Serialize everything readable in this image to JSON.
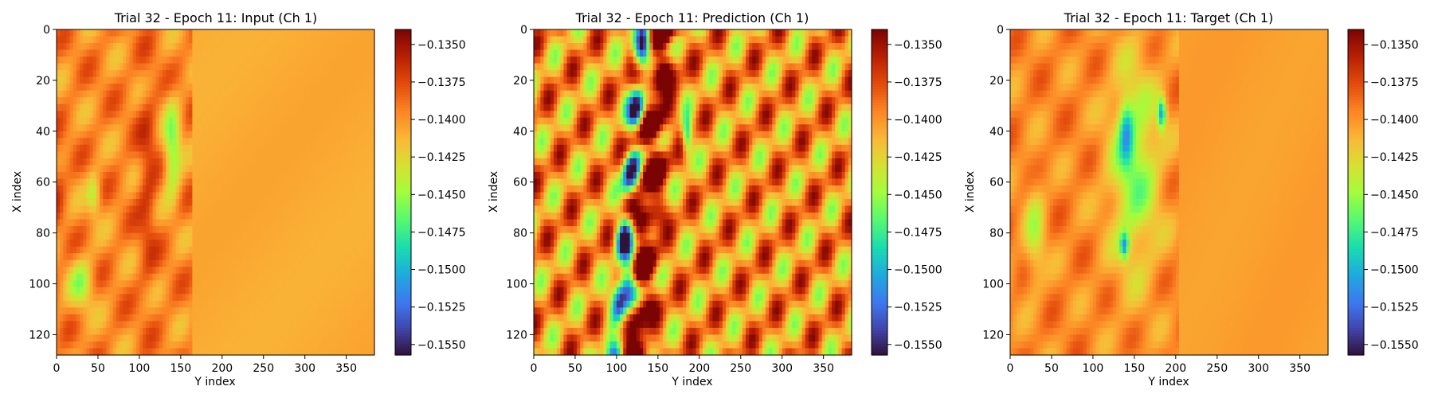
{
  "chart_data": [
    {
      "type": "heatmap",
      "title": "Trial 32 - Epoch 11: Input (Ch 1)",
      "xlabel": "Y index",
      "ylabel": "X index",
      "x_range": [
        0,
        384
      ],
      "y_range": [
        0,
        128
      ],
      "xticks": [
        "0",
        "50",
        "100",
        "150",
        "200",
        "250",
        "300",
        "350"
      ],
      "xtick_values": [
        0,
        50,
        100,
        150,
        200,
        250,
        300,
        350
      ],
      "yticks": [
        "0",
        "20",
        "40",
        "60",
        "80",
        "100",
        "120"
      ],
      "ytick_values": [
        0,
        20,
        40,
        60,
        80,
        100,
        120
      ],
      "colormap": "turbo",
      "colorbar": {
        "vmin": -0.1557,
        "vmax": -0.134,
        "ticks": [
          "−0.1350",
          "−0.1375",
          "−0.1400",
          "−0.1425",
          "−0.1450",
          "−0.1475",
          "−0.1500",
          "−0.1525",
          "−0.1550"
        ],
        "tick_values": [
          -0.135,
          -0.1375,
          -0.14,
          -0.1425,
          -0.145,
          -0.1475,
          -0.15,
          -0.1525,
          -0.155
        ]
      }
    },
    {
      "type": "heatmap",
      "title": "Trial 32 - Epoch 11: Prediction (Ch 1)",
      "xlabel": "Y index",
      "ylabel": "X index",
      "x_range": [
        0,
        384
      ],
      "y_range": [
        0,
        128
      ],
      "xticks": [
        "0",
        "50",
        "100",
        "150",
        "200",
        "250",
        "300",
        "350"
      ],
      "xtick_values": [
        0,
        50,
        100,
        150,
        200,
        250,
        300,
        350
      ],
      "yticks": [
        "0",
        "20",
        "40",
        "60",
        "80",
        "100",
        "120"
      ],
      "ytick_values": [
        0,
        20,
        40,
        60,
        80,
        100,
        120
      ],
      "colormap": "turbo",
      "colorbar": {
        "vmin": -0.1557,
        "vmax": -0.134,
        "ticks": [
          "−0.1350",
          "−0.1375",
          "−0.1400",
          "−0.1425",
          "−0.1450",
          "−0.1475",
          "−0.1500",
          "−0.1525",
          "−0.1550"
        ],
        "tick_values": [
          -0.135,
          -0.1375,
          -0.14,
          -0.1425,
          -0.145,
          -0.1475,
          -0.15,
          -0.1525,
          -0.155
        ]
      }
    },
    {
      "type": "heatmap",
      "title": "Trial 32 - Epoch 11: Target (Ch 1)",
      "xlabel": "Y index",
      "ylabel": "X index",
      "x_range": [
        0,
        384
      ],
      "y_range": [
        0,
        128
      ],
      "xticks": [
        "0",
        "50",
        "100",
        "150",
        "200",
        "250",
        "300",
        "350"
      ],
      "xtick_values": [
        0,
        50,
        100,
        150,
        200,
        250,
        300,
        350
      ],
      "yticks": [
        "0",
        "20",
        "40",
        "60",
        "80",
        "100",
        "120"
      ],
      "ytick_values": [
        0,
        20,
        40,
        60,
        80,
        100,
        120
      ],
      "colormap": "turbo",
      "colorbar": {
        "vmin": -0.1557,
        "vmax": -0.134,
        "ticks": [
          "−0.1350",
          "−0.1375",
          "−0.1400",
          "−0.1425",
          "−0.1450",
          "−0.1475",
          "−0.1500",
          "−0.1525",
          "−0.1550"
        ],
        "tick_values": [
          -0.135,
          -0.1375,
          -0.14,
          -0.1425,
          -0.145,
          -0.1475,
          -0.15,
          -0.1525,
          -0.155
        ]
      }
    }
  ]
}
